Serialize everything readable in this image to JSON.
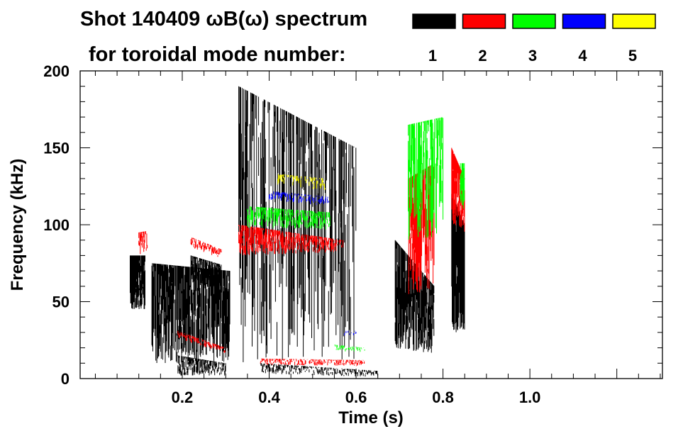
{
  "chart_data": {
    "type": "heatmap",
    "title_line1": "Shot 140409 ωB(ω) spectrum",
    "title_line2": "for toroidal mode number:",
    "xlabel": "Time (s)",
    "ylabel": "Frequency (kHz)",
    "xlim": [
      -0.035,
      1.305
    ],
    "ylim": [
      0,
      200
    ],
    "xticks": [
      0.2,
      0.4,
      0.6,
      0.8,
      1.0
    ],
    "xtick_labels": [
      "0.2",
      "0.4",
      "0.6",
      "0.8",
      "1.0"
    ],
    "yticks": [
      0,
      50,
      100,
      150,
      200
    ],
    "ytick_labels": [
      "0",
      "50",
      "100",
      "150",
      "200"
    ],
    "legend": [
      {
        "mode": "1",
        "color": "#000000"
      },
      {
        "mode": "2",
        "color": "#ff0000"
      },
      {
        "mode": "3",
        "color": "#00ff00"
      },
      {
        "mode": "4",
        "color": "#0000ff"
      },
      {
        "mode": "5",
        "color": "#ffff00"
      }
    ],
    "features": [
      {
        "mode": 1,
        "t": [
          0.08,
          0.115
        ],
        "f0": [
          45,
          80
        ],
        "f1": [
          45,
          80
        ],
        "density": 0.9
      },
      {
        "mode": 1,
        "t": [
          0.13,
          0.31
        ],
        "f0": [
          10,
          75
        ],
        "f1": [
          10,
          70
        ],
        "density": 0.35
      },
      {
        "mode": 1,
        "t": [
          0.22,
          0.29
        ],
        "f0": [
          62,
          80
        ],
        "f1": [
          58,
          74
        ],
        "density": 0.95
      },
      {
        "mode": 1,
        "t": [
          0.19,
          0.3
        ],
        "f0": [
          2,
          15
        ],
        "f1": [
          2,
          10
        ],
        "density": 0.95
      },
      {
        "mode": 1,
        "t": [
          0.38,
          0.65
        ],
        "f0": [
          3,
          10
        ],
        "f1": [
          1,
          5
        ],
        "density": 0.9
      },
      {
        "mode": 1,
        "t": [
          0.33,
          0.6
        ],
        "f0": [
          10,
          190
        ],
        "f1": [
          10,
          150
        ],
        "density": 0.05
      },
      {
        "mode": 1,
        "t": [
          0.69,
          0.78
        ],
        "f0": [
          20,
          90
        ],
        "f1": [
          15,
          60
        ],
        "density": 0.5
      },
      {
        "mode": 1,
        "t": [
          0.82,
          0.85
        ],
        "f0": [
          30,
          120
        ],
        "f1": [
          30,
          100
        ],
        "density": 0.7
      },
      {
        "mode": 2,
        "t": [
          0.1,
          0.12
        ],
        "f0": [
          80,
          95
        ],
        "f1": [
          82,
          96
        ],
        "density": 0.7
      },
      {
        "mode": 2,
        "t": [
          0.22,
          0.29
        ],
        "f0": [
          85,
          92
        ],
        "f1": [
          78,
          84
        ],
        "density": 0.9
      },
      {
        "mode": 2,
        "t": [
          0.19,
          0.3
        ],
        "f0": [
          26,
          31
        ],
        "f1": [
          16,
          20
        ],
        "density": 0.9
      },
      {
        "mode": 2,
        "t": [
          0.33,
          0.57
        ],
        "f0": [
          80,
          100
        ],
        "f1": [
          82,
          90
        ],
        "density": 0.75
      },
      {
        "mode": 2,
        "t": [
          0.38,
          0.62
        ],
        "f0": [
          9,
          13
        ],
        "f1": [
          8,
          12
        ],
        "density": 0.9
      },
      {
        "mode": 2,
        "t": [
          0.72,
          0.78
        ],
        "f0": [
          50,
          130
        ],
        "f1": [
          60,
          140
        ],
        "density": 0.25
      },
      {
        "mode": 2,
        "t": [
          0.82,
          0.85
        ],
        "f0": [
          100,
          150
        ],
        "f1": [
          95,
          130
        ],
        "density": 0.7
      },
      {
        "mode": 3,
        "t": [
          0.35,
          0.54
        ],
        "f0": [
          98,
          112
        ],
        "f1": [
          97,
          108
        ],
        "density": 0.7
      },
      {
        "mode": 3,
        "t": [
          0.55,
          0.62
        ],
        "f0": [
          18,
          22
        ],
        "f1": [
          17,
          20
        ],
        "density": 0.6
      },
      {
        "mode": 3,
        "t": [
          0.72,
          0.8
        ],
        "f0": [
          90,
          165
        ],
        "f1": [
          90,
          170
        ],
        "density": 0.15
      },
      {
        "mode": 3,
        "t": [
          0.84,
          0.85
        ],
        "f0": [
          110,
          140
        ],
        "f1": [
          110,
          140
        ],
        "density": 0.6
      },
      {
        "mode": 4,
        "t": [
          0.4,
          0.54
        ],
        "f0": [
          116,
          122
        ],
        "f1": [
          112,
          118
        ],
        "density": 0.6
      },
      {
        "mode": 4,
        "t": [
          0.57,
          0.6
        ],
        "f0": [
          28,
          31
        ],
        "f1": [
          28,
          31
        ],
        "density": 0.5
      },
      {
        "mode": 5,
        "t": [
          0.42,
          0.53
        ],
        "f0": [
          126,
          133
        ],
        "f1": [
          122,
          130
        ],
        "density": 0.6
      }
    ]
  }
}
